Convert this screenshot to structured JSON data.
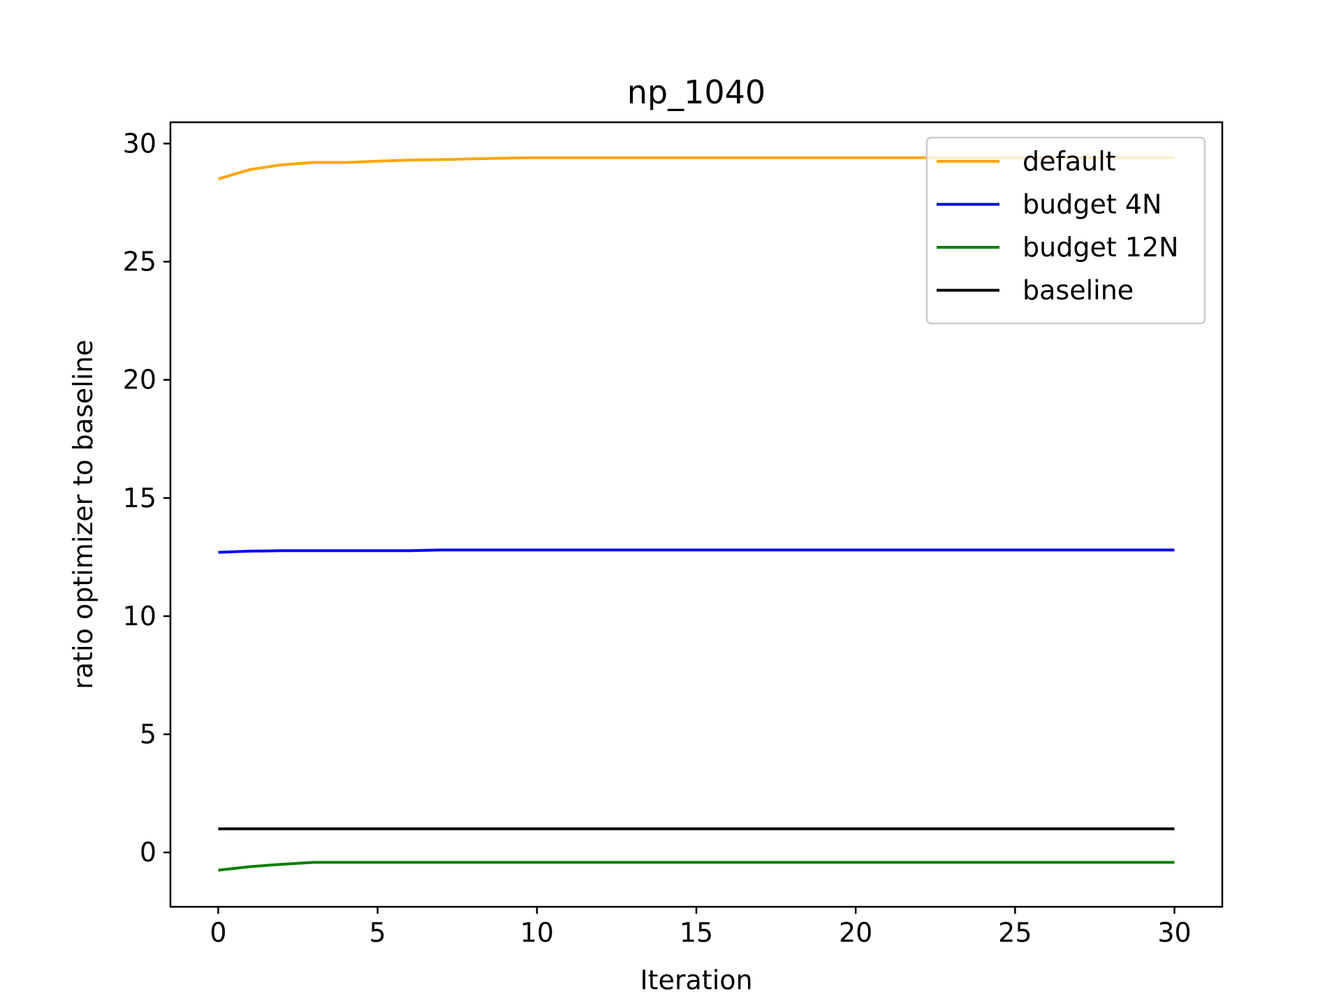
{
  "chart_data": {
    "type": "line",
    "title": "np_1040",
    "xlabel": "Iteration",
    "ylabel": "ratio optimizer to baseline",
    "xlim": [
      -1.5,
      31.5
    ],
    "ylim": [
      -2.3,
      30.9
    ],
    "xticks": [
      0,
      5,
      10,
      15,
      20,
      25,
      30
    ],
    "yticks": [
      0,
      5,
      10,
      15,
      20,
      25,
      30
    ],
    "grid": false,
    "legend_position": "top-right",
    "x": [
      0,
      1,
      2,
      3,
      4,
      5,
      6,
      7,
      8,
      9,
      10,
      11,
      12,
      13,
      14,
      15,
      16,
      17,
      18,
      19,
      20,
      21,
      22,
      23,
      24,
      25,
      26,
      27,
      28,
      29,
      30
    ],
    "series": [
      {
        "name": "default",
        "color": "#ffa500",
        "values": [
          28.5,
          28.9,
          29.1,
          29.2,
          29.2,
          29.25,
          29.3,
          29.32,
          29.35,
          29.38,
          29.4,
          29.4,
          29.4,
          29.4,
          29.4,
          29.4,
          29.4,
          29.4,
          29.4,
          29.4,
          29.4,
          29.4,
          29.4,
          29.4,
          29.4,
          29.4,
          29.4,
          29.4,
          29.4,
          29.4,
          29.4
        ]
      },
      {
        "name": "budget 4N",
        "color": "#0000ff",
        "values": [
          12.7,
          12.75,
          12.77,
          12.77,
          12.77,
          12.77,
          12.77,
          12.8,
          12.8,
          12.8,
          12.8,
          12.8,
          12.8,
          12.8,
          12.8,
          12.8,
          12.8,
          12.8,
          12.8,
          12.8,
          12.8,
          12.8,
          12.8,
          12.8,
          12.8,
          12.8,
          12.8,
          12.8,
          12.8,
          12.8,
          12.8
        ]
      },
      {
        "name": "budget 12N",
        "color": "#008000",
        "values": [
          -0.75,
          -0.6,
          -0.5,
          -0.42,
          -0.42,
          -0.42,
          -0.42,
          -0.42,
          -0.42,
          -0.42,
          -0.42,
          -0.42,
          -0.42,
          -0.42,
          -0.42,
          -0.42,
          -0.42,
          -0.42,
          -0.42,
          -0.42,
          -0.42,
          -0.42,
          -0.42,
          -0.42,
          -0.42,
          -0.42,
          -0.42,
          -0.42,
          -0.42,
          -0.42,
          -0.42
        ]
      },
      {
        "name": "baseline",
        "color": "#000000",
        "values": [
          1,
          1,
          1,
          1,
          1,
          1,
          1,
          1,
          1,
          1,
          1,
          1,
          1,
          1,
          1,
          1,
          1,
          1,
          1,
          1,
          1,
          1,
          1,
          1,
          1,
          1,
          1,
          1,
          1,
          1,
          1
        ]
      }
    ]
  }
}
